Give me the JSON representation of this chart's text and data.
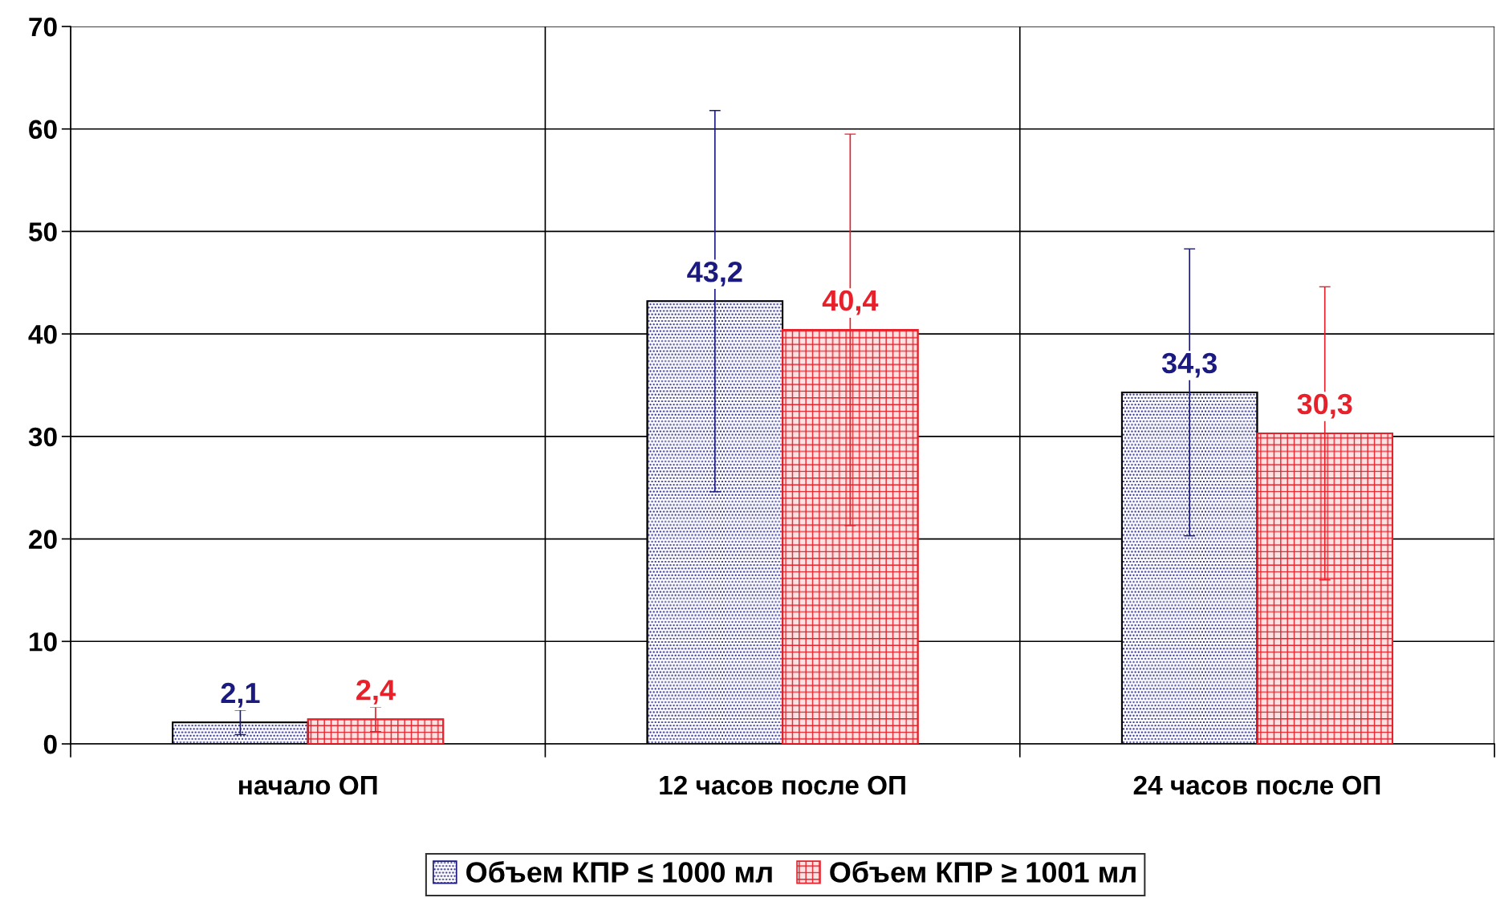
{
  "chart_data": {
    "type": "bar",
    "categories": [
      "начало ОП",
      "12 часов после ОП",
      "24 часов после ОП"
    ],
    "series": [
      {
        "name": "Объем КПР ≤ 1000 мл",
        "color": "#1a1a80",
        "values": [
          2.1,
          43.2,
          34.3
        ],
        "value_labels": [
          "2,1",
          "43,2",
          "34,3"
        ],
        "errors": [
          1.2,
          18.6,
          14.0
        ]
      },
      {
        "name": "Объем КПР ≥ 1001 мл",
        "color": "#e8202a",
        "values": [
          2.4,
          40.4,
          30.3
        ],
        "value_labels": [
          "2,4",
          "40,4",
          "30,3"
        ],
        "errors": [
          1.2,
          19.1,
          14.3
        ]
      }
    ],
    "ylim": [
      0,
      70
    ],
    "yticks": [
      0,
      10,
      20,
      30,
      40,
      50,
      60,
      70
    ],
    "grid": true,
    "legend": "bottom"
  }
}
